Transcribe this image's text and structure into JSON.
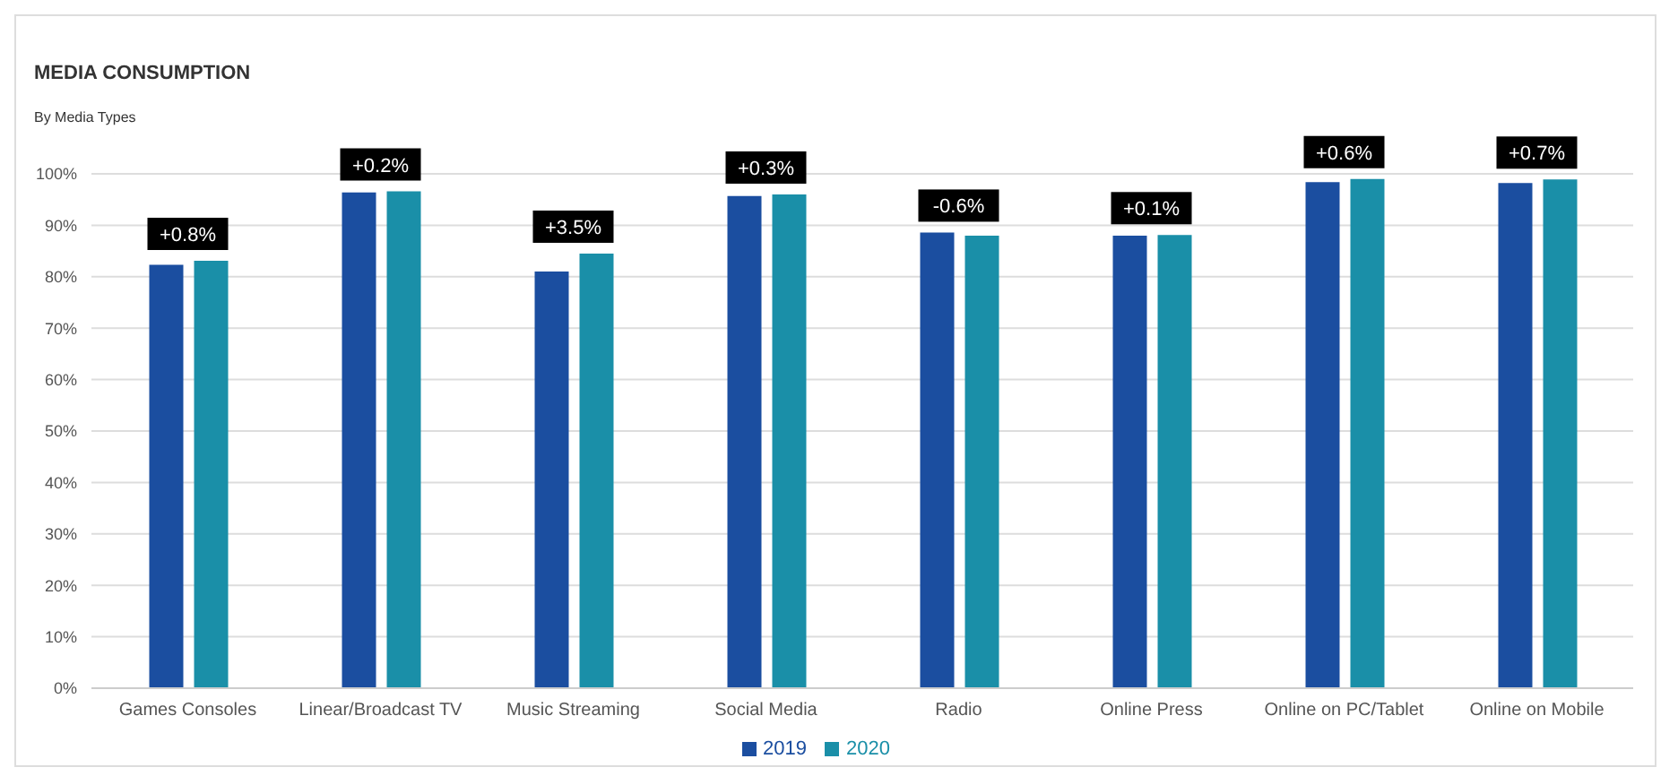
{
  "chart_data": {
    "type": "bar",
    "title": "MEDIA CONSUMPTION",
    "subtitle": "By Media Types",
    "categories": [
      "Games Consoles",
      "Linear/Broadcast TV",
      "Music Streaming",
      "Social Media",
      "Radio",
      "Online Press",
      "Online on PC/Tablet",
      "Online on Mobile"
    ],
    "series": [
      {
        "name": "2019",
        "color": "#1b4ea0",
        "values": [
          82.3,
          96.4,
          81.0,
          95.7,
          88.6,
          88.0,
          98.4,
          98.2
        ]
      },
      {
        "name": "2020",
        "color": "#1a8fa8",
        "values": [
          83.1,
          96.6,
          84.5,
          96.0,
          88.0,
          88.1,
          99.0,
          98.9
        ]
      }
    ],
    "ylim": [
      0,
      100
    ],
    "yticks": [
      {
        "value": 0,
        "label": "0%"
      },
      {
        "value": 10,
        "label": "10%"
      },
      {
        "value": 20,
        "label": "20%"
      },
      {
        "value": 30,
        "label": "30%"
      },
      {
        "value": 40,
        "label": "40%"
      },
      {
        "value": 50,
        "label": "50%"
      },
      {
        "value": 60,
        "label": "60%"
      },
      {
        "value": 70,
        "label": "70%"
      },
      {
        "value": 80,
        "label": "80%"
      },
      {
        "value": 90,
        "label": "90%"
      },
      {
        "value": 100,
        "label": "100%"
      }
    ],
    "grid": "y",
    "legend": "bottom",
    "annotations": [
      {
        "text": "+0.8%",
        "x": "Games Consoles",
        "y": 83.1
      },
      {
        "text": "+0.2%",
        "x": "Linear/Broadcast TV",
        "y": 96.6
      },
      {
        "text": "+3.5%",
        "x": "Music Streaming",
        "y": 84.5
      },
      {
        "text": "+0.3%",
        "x": "Social Media",
        "y": 96.0
      },
      {
        "text": "-0.6%",
        "x": "Radio",
        "y": 88.6
      },
      {
        "text": "+0.1%",
        "x": "Online Press",
        "y": 88.1
      },
      {
        "text": "+0.6%",
        "x": "Online on PC/Tablet",
        "y": 99.0
      },
      {
        "text": "+0.7%",
        "x": "Online on Mobile",
        "y": 98.9
      }
    ]
  }
}
